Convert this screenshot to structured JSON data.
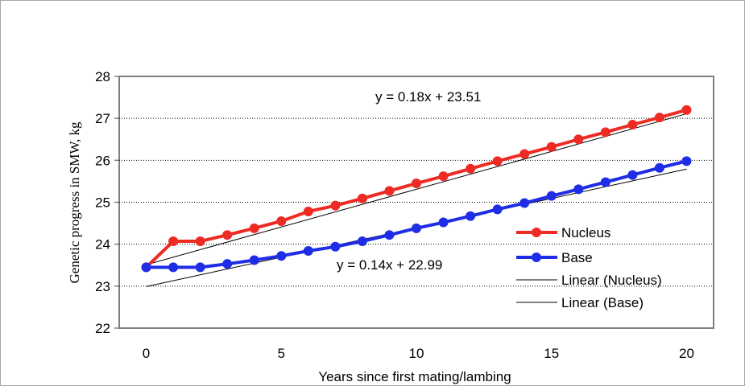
{
  "chart_data": {
    "type": "line",
    "xlabel": "Years since first mating/lambing",
    "ylabel": "Genetic progress in SMW, kg",
    "xlim": [
      -1,
      21
    ],
    "ylim": [
      22,
      28
    ],
    "x_ticks": [
      0,
      5,
      10,
      15,
      20
    ],
    "y_ticks": [
      22,
      23,
      24,
      25,
      26,
      27,
      28
    ],
    "x": [
      0,
      1,
      2,
      3,
      4,
      5,
      6,
      7,
      8,
      9,
      10,
      11,
      12,
      13,
      14,
      15,
      16,
      17,
      18,
      19,
      20
    ],
    "series": [
      {
        "name": "Nucleus",
        "color": "#ee2a24",
        "values": [
          23.45,
          24.07,
          24.07,
          24.22,
          24.38,
          24.55,
          24.78,
          24.92,
          25.09,
          25.27,
          25.45,
          25.62,
          25.8,
          25.98,
          26.15,
          26.32,
          26.5,
          26.67,
          26.85,
          27.02,
          27.2
        ]
      },
      {
        "name": "Base",
        "color": "#1f2ee6",
        "values": [
          23.45,
          23.45,
          23.45,
          23.53,
          23.62,
          23.72,
          23.84,
          23.94,
          24.07,
          24.22,
          24.38,
          24.52,
          24.67,
          24.83,
          24.98,
          25.15,
          25.31,
          25.48,
          25.65,
          25.82,
          25.98
        ]
      }
    ],
    "trendlines": [
      {
        "name": "Linear (Nucleus)",
        "slope": 0.18,
        "intercept": 23.51,
        "equation": "y = 0.18x + 23.51"
      },
      {
        "name": "Linear (Base)",
        "slope": 0.14,
        "intercept": 22.99,
        "equation": "y = 0.14x + 22.99"
      }
    ],
    "grid": "horizontal dotted",
    "legend_position": "right"
  }
}
